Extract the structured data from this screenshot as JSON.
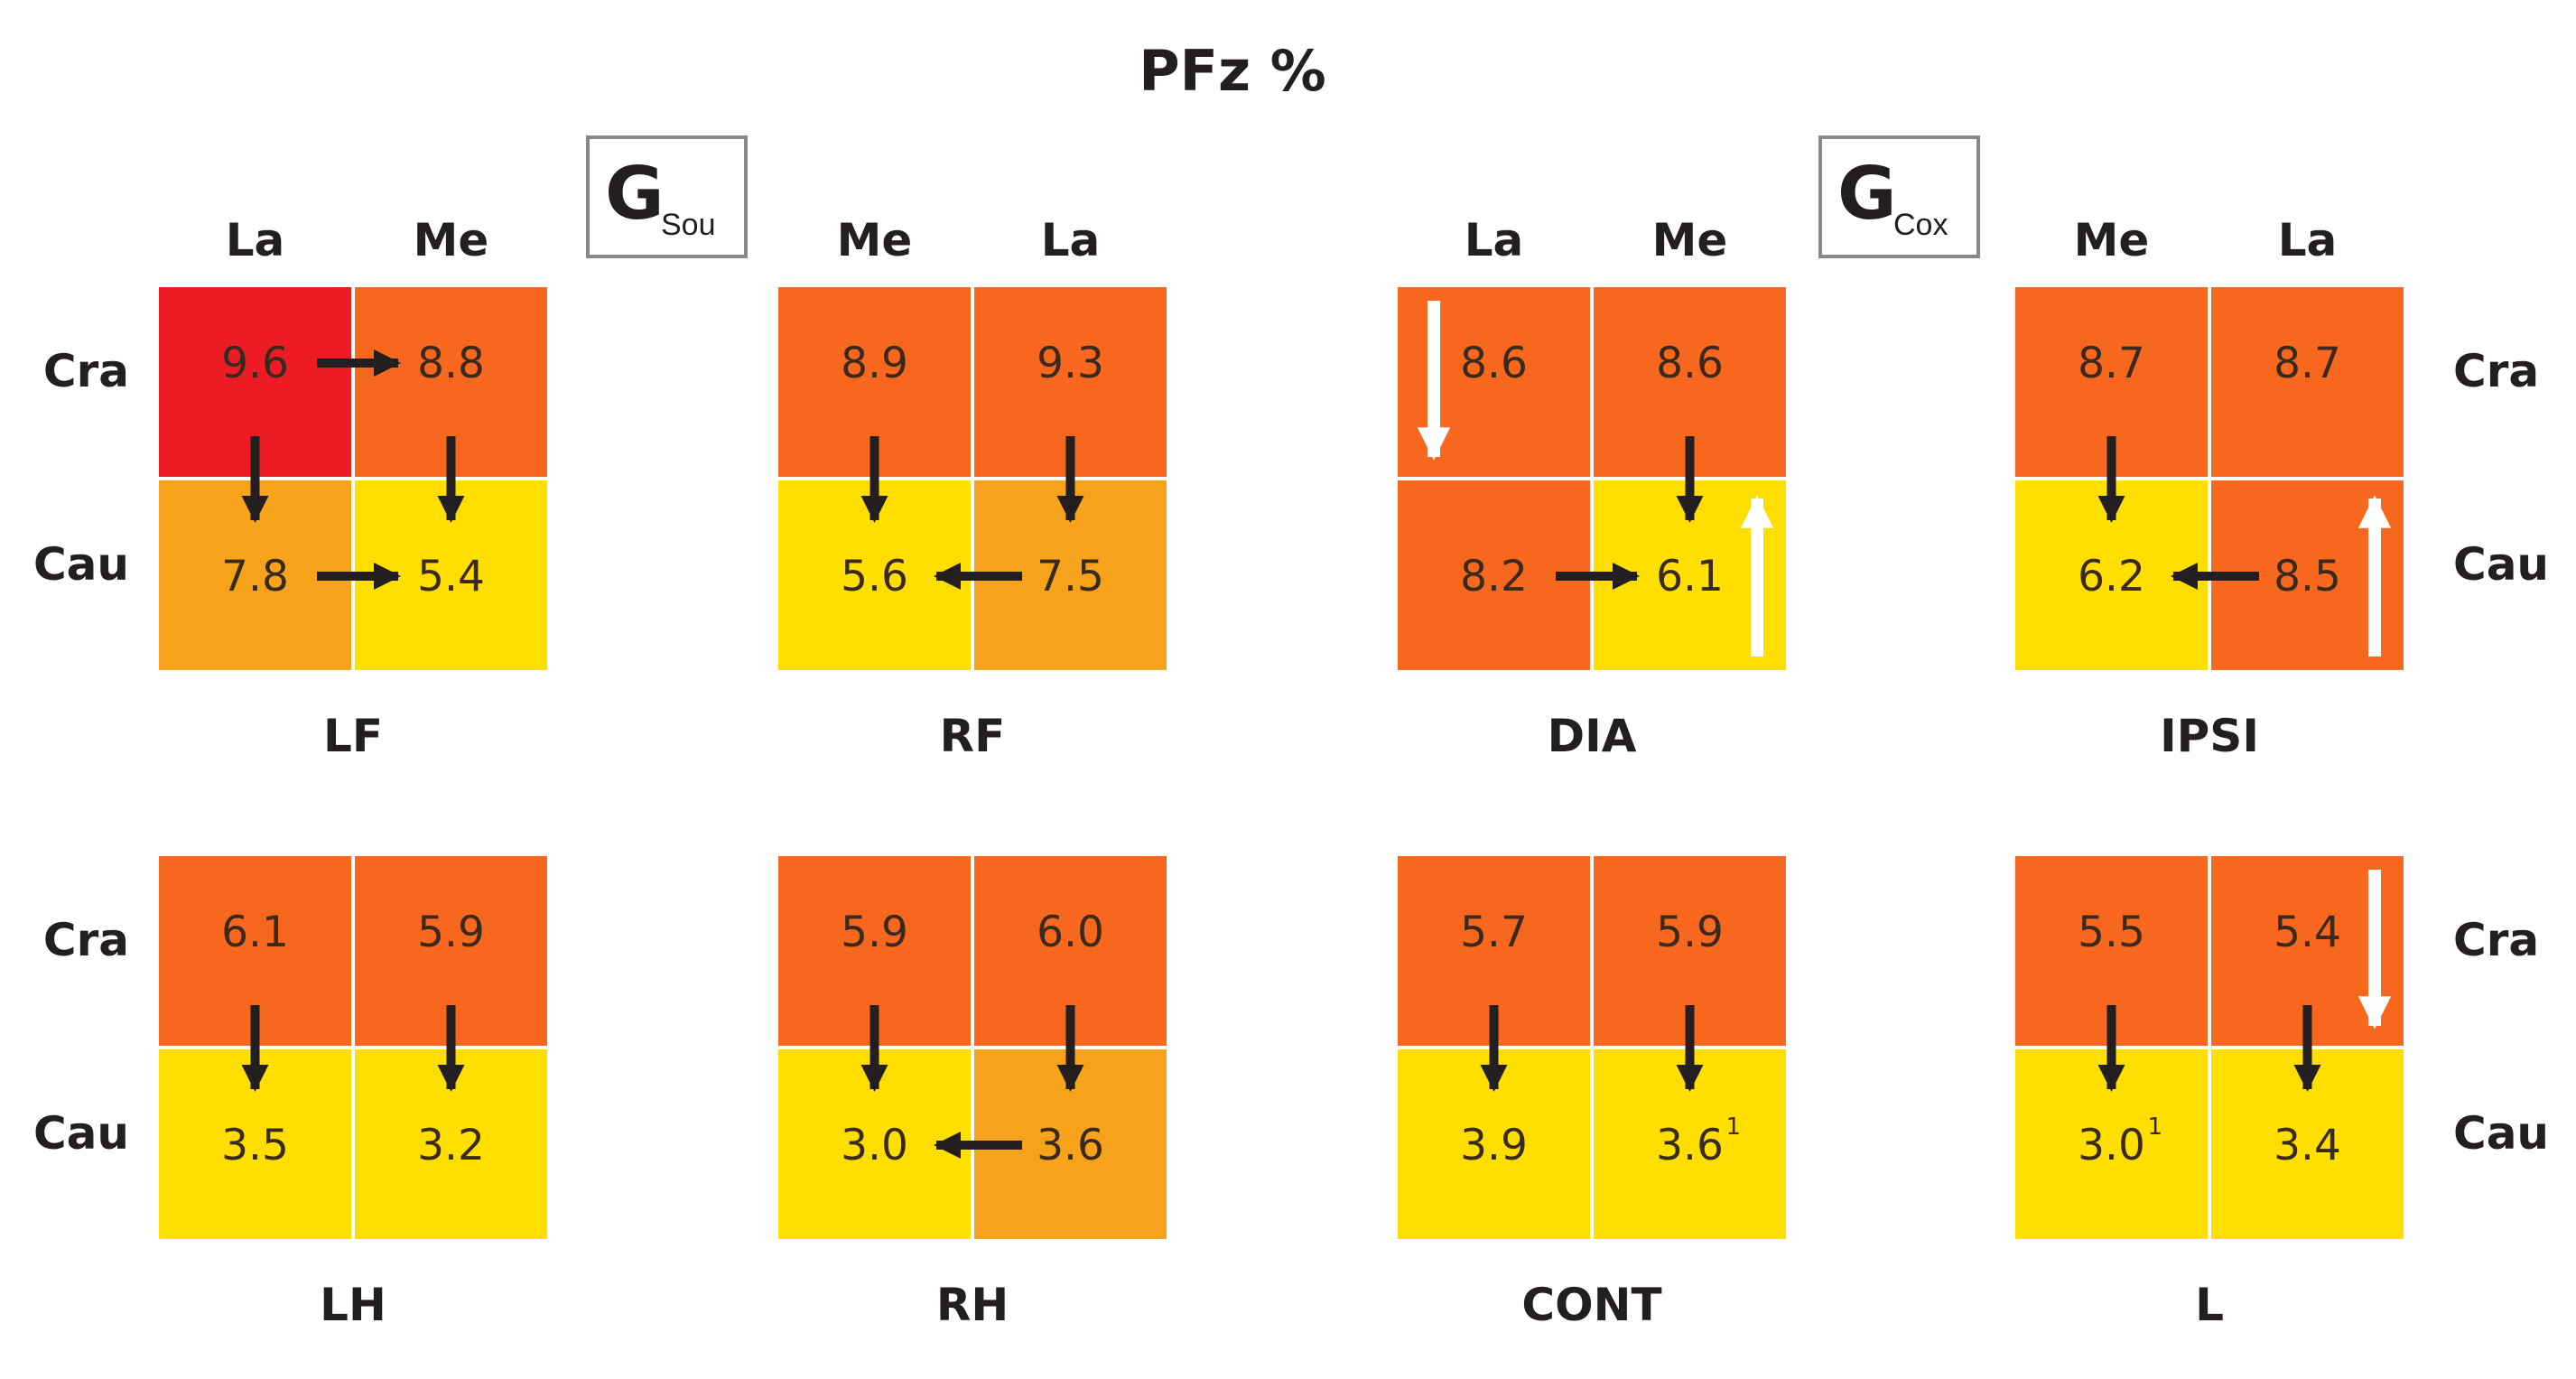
{
  "title": "PFz %",
  "group_labels": [
    {
      "main": "G",
      "sub": "Sou"
    },
    {
      "main": "G",
      "sub": "Cox"
    }
  ],
  "row_labels": {
    "cranial": "Cra",
    "caudal": "Cau"
  },
  "colors": {
    "red": "#ed1c24",
    "dark_orange": "#f7671d",
    "orange": "#f7a21b",
    "yellow": "#ffde00",
    "arrow_black": "#231f20",
    "arrow_white": "#ffffff",
    "box_border": "#888888"
  },
  "panels": [
    {
      "name": "LF",
      "cols": [
        "La",
        "Me"
      ],
      "cells": [
        {
          "v": "9.6",
          "c": "red"
        },
        {
          "v": "8.8",
          "c": "dark_orange"
        },
        {
          "v": "7.8",
          "c": "orange"
        },
        {
          "v": "5.4",
          "c": "yellow"
        }
      ],
      "arrows": [
        {
          "type": "h",
          "row": "top",
          "dir": "right"
        },
        {
          "type": "h",
          "row": "bottom",
          "dir": "right"
        },
        {
          "type": "v",
          "col": "left",
          "dir": "down"
        },
        {
          "type": "v",
          "col": "right",
          "dir": "down"
        }
      ]
    },
    {
      "name": "RF",
      "cols": [
        "Me",
        "La"
      ],
      "cells": [
        {
          "v": "8.9",
          "c": "dark_orange"
        },
        {
          "v": "9.3",
          "c": "dark_orange"
        },
        {
          "v": "5.6",
          "c": "yellow"
        },
        {
          "v": "7.5",
          "c": "orange"
        }
      ],
      "arrows": [
        {
          "type": "h",
          "row": "bottom",
          "dir": "left"
        },
        {
          "type": "v",
          "col": "left",
          "dir": "down"
        },
        {
          "type": "v",
          "col": "right",
          "dir": "down"
        }
      ]
    },
    {
      "name": "DIA",
      "cols": [
        "La",
        "Me"
      ],
      "cells": [
        {
          "v": "8.6",
          "c": "dark_orange"
        },
        {
          "v": "8.6",
          "c": "dark_orange"
        },
        {
          "v": "8.2",
          "c": "dark_orange"
        },
        {
          "v": "6.1",
          "c": "yellow"
        }
      ],
      "arrows": [
        {
          "type": "h",
          "row": "bottom",
          "dir": "right"
        },
        {
          "type": "v",
          "col": "right",
          "dir": "down"
        },
        {
          "type": "w",
          "pos": "top-left",
          "dir": "down"
        },
        {
          "type": "w",
          "pos": "bottom-right",
          "dir": "up"
        }
      ]
    },
    {
      "name": "IPSI",
      "cols": [
        "Me",
        "La"
      ],
      "rows_side": "right",
      "cells": [
        {
          "v": "8.7",
          "c": "dark_orange"
        },
        {
          "v": "8.7",
          "c": "dark_orange"
        },
        {
          "v": "6.2",
          "c": "yellow"
        },
        {
          "v": "8.5",
          "c": "dark_orange"
        }
      ],
      "arrows": [
        {
          "type": "h",
          "row": "bottom",
          "dir": "left"
        },
        {
          "type": "v",
          "col": "left",
          "dir": "down"
        },
        {
          "type": "w",
          "pos": "bottom-right",
          "dir": "up"
        }
      ]
    },
    {
      "name": "LH",
      "cells": [
        {
          "v": "6.1",
          "c": "dark_orange"
        },
        {
          "v": "5.9",
          "c": "dark_orange"
        },
        {
          "v": "3.5",
          "c": "yellow"
        },
        {
          "v": "3.2",
          "c": "yellow"
        }
      ],
      "arrows": [
        {
          "type": "v",
          "col": "left",
          "dir": "down"
        },
        {
          "type": "v",
          "col": "right",
          "dir": "down"
        }
      ]
    },
    {
      "name": "RH",
      "cells": [
        {
          "v": "5.9",
          "c": "dark_orange"
        },
        {
          "v": "6.0",
          "c": "dark_orange"
        },
        {
          "v": "3.0",
          "c": "yellow"
        },
        {
          "v": "3.6",
          "c": "orange"
        }
      ],
      "arrows": [
        {
          "type": "h",
          "row": "bottom",
          "dir": "left"
        },
        {
          "type": "v",
          "col": "left",
          "dir": "down"
        },
        {
          "type": "v",
          "col": "right",
          "dir": "down"
        }
      ]
    },
    {
      "name": "CONT",
      "cells": [
        {
          "v": "5.7",
          "c": "dark_orange"
        },
        {
          "v": "5.9",
          "c": "dark_orange"
        },
        {
          "v": "3.9",
          "c": "yellow"
        },
        {
          "v": "3.6",
          "c": "yellow",
          "sup": "1"
        }
      ],
      "arrows": [
        {
          "type": "v",
          "col": "left",
          "dir": "down"
        },
        {
          "type": "v",
          "col": "right",
          "dir": "down"
        }
      ]
    },
    {
      "name": "L",
      "rows_side": "right",
      "cells": [
        {
          "v": "5.5",
          "c": "dark_orange"
        },
        {
          "v": "5.4",
          "c": "dark_orange"
        },
        {
          "v": "3.0",
          "c": "yellow",
          "sup": "1"
        },
        {
          "v": "3.4",
          "c": "yellow"
        }
      ],
      "arrows": [
        {
          "type": "v",
          "col": "left",
          "dir": "down"
        },
        {
          "type": "v",
          "col": "right",
          "dir": "down"
        },
        {
          "type": "w",
          "pos": "top-right",
          "dir": "down"
        }
      ]
    }
  ]
}
